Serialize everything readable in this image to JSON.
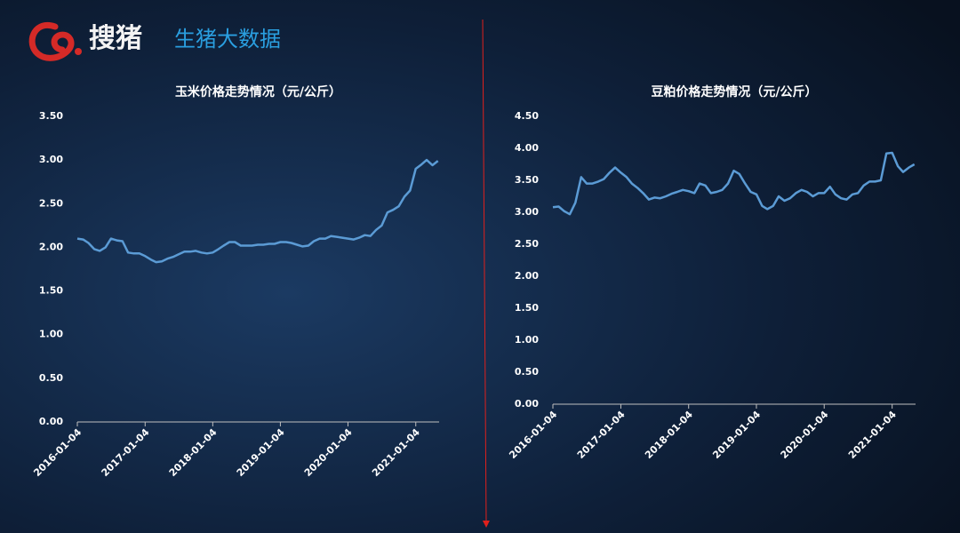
{
  "header": {
    "brand": "搜猪",
    "subtitle": "生猪大数据"
  },
  "chart_data": [
    {
      "type": "line",
      "title": "玉米价格走势情况（元/公斤）",
      "color": "#5b9bd5",
      "x": [
        "2016-01-04",
        "2016-02-04",
        "2016-03-04",
        "2016-04-04",
        "2016-05-04",
        "2016-06-04",
        "2016-07-04",
        "2016-08-04",
        "2016-09-04",
        "2016-10-04",
        "2016-11-04",
        "2016-12-04",
        "2017-01-04",
        "2017-02-04",
        "2017-03-04",
        "2017-04-04",
        "2017-05-04",
        "2017-06-04",
        "2017-07-04",
        "2017-08-04",
        "2017-09-04",
        "2017-10-04",
        "2017-11-04",
        "2017-12-04",
        "2018-01-04",
        "2018-02-04",
        "2018-03-04",
        "2018-04-04",
        "2018-05-04",
        "2018-06-04",
        "2018-07-04",
        "2018-08-04",
        "2018-09-04",
        "2018-10-04",
        "2018-11-04",
        "2018-12-04",
        "2019-01-04",
        "2019-02-04",
        "2019-03-04",
        "2019-04-04",
        "2019-05-04",
        "2019-06-04",
        "2019-07-04",
        "2019-08-04",
        "2019-09-04",
        "2019-10-04",
        "2019-11-04",
        "2019-12-04",
        "2020-01-04",
        "2020-02-04",
        "2020-03-04",
        "2020-04-04",
        "2020-05-04",
        "2020-06-04",
        "2020-07-04",
        "2020-08-04",
        "2020-09-04",
        "2020-10-04",
        "2020-11-04",
        "2020-12-04",
        "2021-01-04",
        "2021-02-04",
        "2021-03-04",
        "2021-04-04",
        "2021-05-04"
      ],
      "values": [
        2.1,
        2.09,
        2.05,
        1.98,
        1.96,
        2.0,
        2.1,
        2.08,
        2.07,
        1.94,
        1.93,
        1.93,
        1.9,
        1.86,
        1.83,
        1.84,
        1.87,
        1.89,
        1.92,
        1.95,
        1.95,
        1.96,
        1.94,
        1.93,
        1.94,
        1.98,
        2.02,
        2.06,
        2.06,
        2.02,
        2.02,
        2.02,
        2.03,
        2.03,
        2.04,
        2.04,
        2.06,
        2.06,
        2.05,
        2.03,
        2.01,
        2.02,
        2.07,
        2.1,
        2.1,
        2.13,
        2.12,
        2.11,
        2.1,
        2.09,
        2.11,
        2.14,
        2.13,
        2.2,
        2.25,
        2.4,
        2.43,
        2.47,
        2.58,
        2.65,
        2.9,
        2.95,
        3.0,
        2.94,
        2.99
      ],
      "xlim": [
        "2016-01-04",
        "2021-05-10"
      ],
      "xticks": [
        "2016-01-04",
        "2017-01-04",
        "2018-01-04",
        "2019-01-04",
        "2020-01-04",
        "2021-01-04"
      ],
      "ylim": [
        0,
        3.5
      ],
      "yticks": [
        {
          "value": 0,
          "label": "0.00"
        },
        {
          "value": 0.5,
          "label": "0.50"
        },
        {
          "value": 1,
          "label": "1.00"
        },
        {
          "value": 1.5,
          "label": "1.50"
        },
        {
          "value": 2,
          "label": "2.00"
        },
        {
          "value": 2.5,
          "label": "2.50"
        },
        {
          "value": 3,
          "label": "3.00"
        },
        {
          "value": 3.5,
          "label": "3.50"
        }
      ]
    },
    {
      "type": "line",
      "title": "豆粕价格走势情况（元/公斤）",
      "color": "#5b9bd5",
      "x": [
        "2016-01-04",
        "2016-02-04",
        "2016-03-04",
        "2016-04-04",
        "2016-05-04",
        "2016-06-04",
        "2016-07-04",
        "2016-08-04",
        "2016-09-04",
        "2016-10-04",
        "2016-11-04",
        "2016-12-04",
        "2017-01-04",
        "2017-02-04",
        "2017-03-04",
        "2017-04-04",
        "2017-05-04",
        "2017-06-04",
        "2017-07-04",
        "2017-08-04",
        "2017-09-04",
        "2017-10-04",
        "2017-11-04",
        "2017-12-04",
        "2018-01-04",
        "2018-02-04",
        "2018-03-04",
        "2018-04-04",
        "2018-05-04",
        "2018-06-04",
        "2018-07-04",
        "2018-08-04",
        "2018-09-04",
        "2018-10-04",
        "2018-11-04",
        "2018-12-04",
        "2019-01-04",
        "2019-02-04",
        "2019-03-04",
        "2019-04-04",
        "2019-05-04",
        "2019-06-04",
        "2019-07-04",
        "2019-08-04",
        "2019-09-04",
        "2019-10-04",
        "2019-11-04",
        "2019-12-04",
        "2020-01-04",
        "2020-02-04",
        "2020-03-04",
        "2020-04-04",
        "2020-05-04",
        "2020-06-04",
        "2020-07-04",
        "2020-08-04",
        "2020-09-04",
        "2020-10-04",
        "2020-11-04",
        "2020-12-04",
        "2021-01-04",
        "2021-02-04",
        "2021-03-04",
        "2021-04-04",
        "2021-05-04"
      ],
      "values": [
        3.08,
        3.09,
        3.02,
        2.97,
        3.15,
        3.55,
        3.45,
        3.45,
        3.48,
        3.52,
        3.62,
        3.7,
        3.62,
        3.55,
        3.45,
        3.38,
        3.3,
        3.2,
        3.23,
        3.22,
        3.25,
        3.29,
        3.32,
        3.35,
        3.33,
        3.3,
        3.45,
        3.42,
        3.3,
        3.32,
        3.35,
        3.45,
        3.65,
        3.6,
        3.45,
        3.32,
        3.28,
        3.1,
        3.05,
        3.1,
        3.25,
        3.18,
        3.22,
        3.3,
        3.35,
        3.32,
        3.25,
        3.3,
        3.3,
        3.4,
        3.28,
        3.22,
        3.2,
        3.28,
        3.3,
        3.42,
        3.48,
        3.48,
        3.5,
        3.92,
        3.93,
        3.72,
        3.63,
        3.7,
        3.75
      ],
      "xlim": [
        "2016-01-04",
        "2021-05-10"
      ],
      "xticks": [
        "2016-01-04",
        "2017-01-04",
        "2018-01-04",
        "2019-01-04",
        "2020-01-04",
        "2021-01-04"
      ],
      "ylim": [
        0,
        4.5
      ],
      "yticks": [
        {
          "value": 0,
          "label": "0.00"
        },
        {
          "value": 0.5,
          "label": "0.50"
        },
        {
          "value": 1,
          "label": "1.00"
        },
        {
          "value": 1.5,
          "label": "1.50"
        },
        {
          "value": 2,
          "label": "2.00"
        },
        {
          "value": 2.5,
          "label": "2.50"
        },
        {
          "value": 3,
          "label": "3.00"
        },
        {
          "value": 3.5,
          "label": "3.50"
        },
        {
          "value": 4,
          "label": "4.00"
        },
        {
          "value": 4.5,
          "label": "4.50"
        }
      ]
    }
  ]
}
